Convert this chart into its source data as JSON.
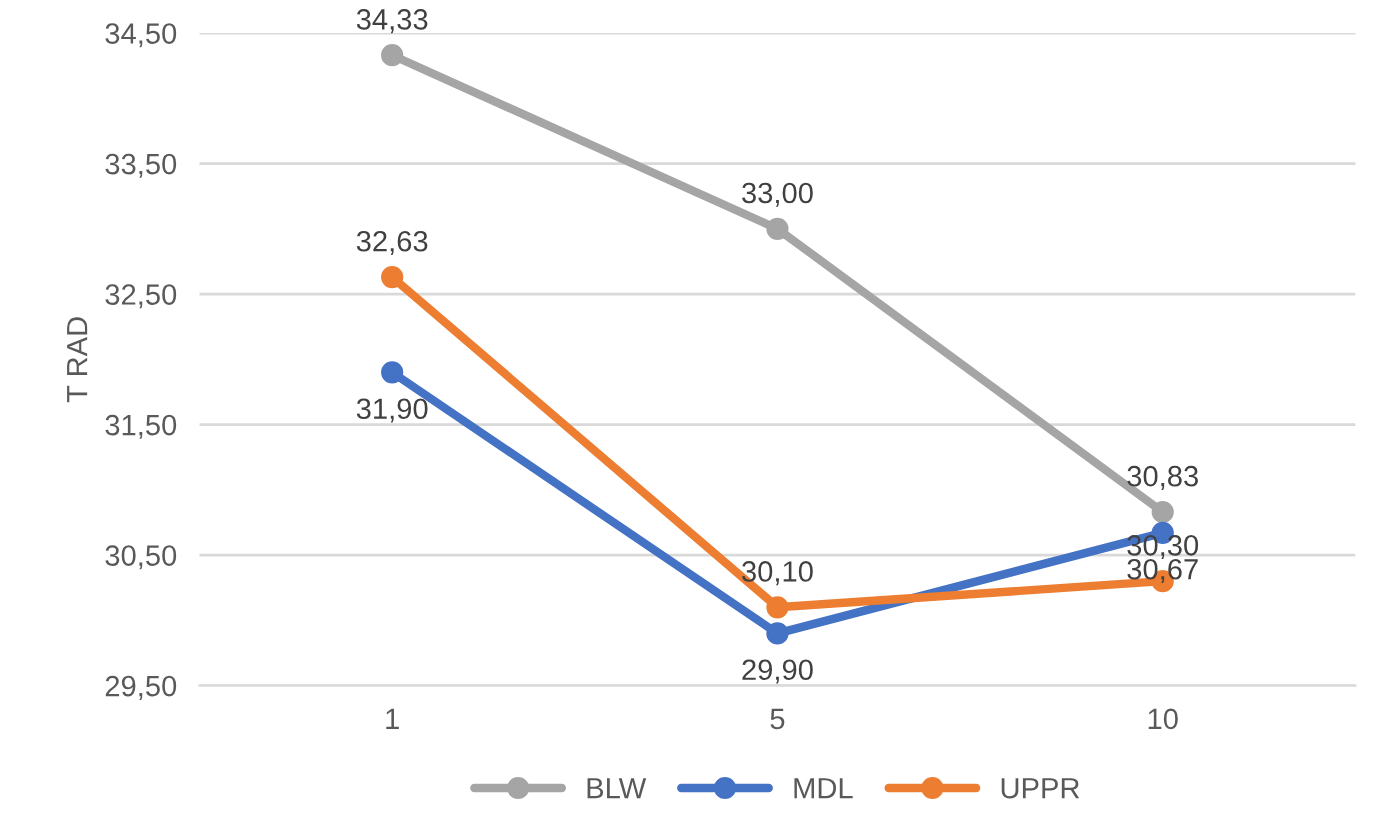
{
  "chart_data": {
    "type": "line",
    "ylabel": "T RAD",
    "categories": [
      "1",
      "5",
      "10"
    ],
    "series": [
      {
        "name": "BLW",
        "color": "#a5a5a5",
        "values": [
          34.33,
          33.0,
          30.83
        ],
        "value_labels": [
          "34,33",
          "33,00",
          "30,83"
        ]
      },
      {
        "name": "MDL",
        "color": "#4472c4",
        "values": [
          31.9,
          29.9,
          30.67
        ],
        "value_labels": [
          "31,90",
          "29,90",
          "30,67"
        ]
      },
      {
        "name": "UPPR",
        "color": "#ed7d31",
        "values": [
          32.63,
          30.1,
          30.3
        ],
        "value_labels": [
          "32,63",
          "30,10",
          "30,30"
        ]
      }
    ],
    "ylim": [
      29.5,
      34.5
    ],
    "yticks": [
      {
        "value": 29.5,
        "label": "29,50"
      },
      {
        "value": 30.5,
        "label": "30,50"
      },
      {
        "value": 31.5,
        "label": "31,50"
      },
      {
        "value": 32.5,
        "label": "32,50"
      },
      {
        "value": 33.5,
        "label": "33,50"
      },
      {
        "value": 34.5,
        "label": "34,50"
      }
    ],
    "grid": "y",
    "legend": "bottom",
    "marker": "circle",
    "line_style": "solid"
  }
}
